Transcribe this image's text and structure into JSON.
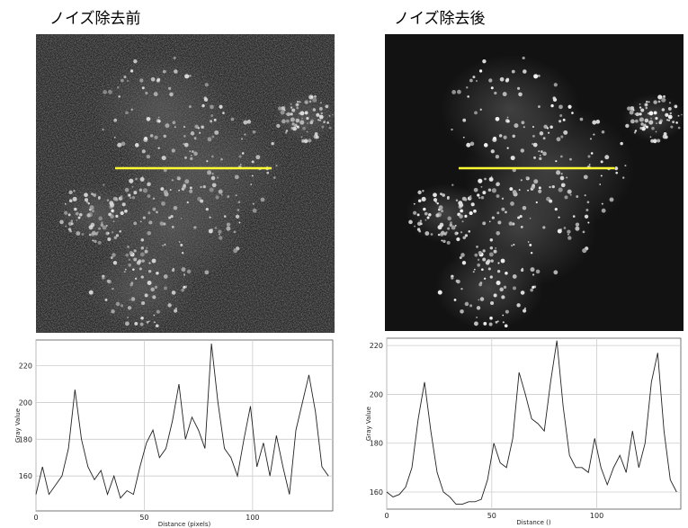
{
  "chart_data": [
    {
      "type": "line",
      "title": "ノイズ除去前",
      "x_label": "Distance (pixels)",
      "y_label": "Gray Value",
      "x": [
        0,
        3,
        6,
        9,
        12,
        15,
        18,
        21,
        24,
        27,
        30,
        33,
        36,
        39,
        42,
        45,
        48,
        51,
        54,
        57,
        60,
        63,
        66,
        69,
        72,
        75,
        78,
        81,
        84,
        87,
        90,
        93,
        96,
        99,
        102,
        105,
        108,
        111,
        114,
        117,
        120,
        123,
        126,
        129,
        132,
        135
      ],
      "values": [
        150,
        165,
        150,
        155,
        160,
        175,
        207,
        180,
        165,
        158,
        163,
        150,
        160,
        148,
        152,
        150,
        165,
        178,
        185,
        170,
        175,
        190,
        210,
        180,
        192,
        185,
        175,
        232,
        200,
        175,
        170,
        160,
        180,
        198,
        165,
        178,
        160,
        182,
        165,
        150,
        185,
        200,
        215,
        195,
        165,
        160
      ],
      "color": "#222222",
      "xlim": [
        0,
        137
      ],
      "ylim": [
        141,
        234
      ],
      "xticks": [
        0,
        50,
        100
      ],
      "yticks": [
        160,
        180,
        200,
        220
      ],
      "grid": true
    },
    {
      "type": "line",
      "title": "ノイズ除去後",
      "x_label": "Distance ()",
      "y_label": "Gray Value",
      "x": [
        0,
        3,
        6,
        9,
        12,
        15,
        18,
        21,
        24,
        27,
        30,
        33,
        36,
        39,
        42,
        45,
        48,
        51,
        54,
        57,
        60,
        63,
        66,
        69,
        72,
        75,
        78,
        81,
        84,
        87,
        90,
        93,
        96,
        99,
        102,
        105,
        108,
        111,
        114,
        117,
        120,
        123,
        126,
        129,
        132,
        135,
        138
      ],
      "values": [
        160,
        158,
        159,
        162,
        170,
        190,
        205,
        185,
        168,
        160,
        158,
        155,
        155,
        156,
        156,
        157,
        165,
        180,
        172,
        170,
        182,
        209,
        200,
        190,
        188,
        185,
        205,
        222,
        195,
        175,
        170,
        170,
        168,
        182,
        170,
        163,
        170,
        175,
        168,
        185,
        170,
        180,
        205,
        217,
        185,
        165,
        160
      ],
      "color": "#222222",
      "xlim": [
        0,
        140
      ],
      "ylim": [
        153,
        223
      ],
      "xticks": [
        0,
        50,
        100
      ],
      "yticks": [
        160,
        180,
        200,
        220
      ],
      "grid": true
    }
  ]
}
